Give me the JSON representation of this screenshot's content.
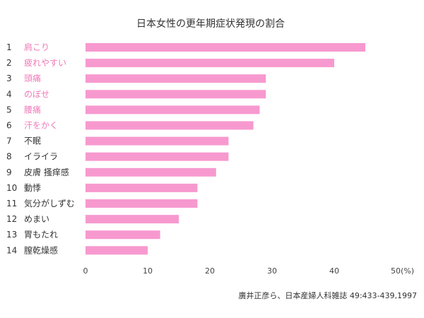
{
  "chart_data": {
    "type": "bar",
    "orientation": "horizontal",
    "title": "日本女性の更年期症状発現の割合",
    "ranks": [
      "1",
      "2",
      "3",
      "4",
      "5",
      "6",
      "7",
      "8",
      "9",
      "10",
      "11",
      "12",
      "13",
      "14"
    ],
    "categories": [
      "肩こり",
      "疲れやすい",
      "頭痛",
      "のぼせ",
      "腰痛",
      "汗をかく",
      "不眠",
      "イライラ",
      "皮膚 搔痒感",
      "動悸",
      "気分がしずむ",
      "めまい",
      "胃もたれ",
      "膣乾燥感"
    ],
    "values": [
      45,
      40,
      29,
      29,
      28,
      27,
      23,
      23,
      21,
      18,
      18,
      15,
      12,
      10
    ],
    "label_colors": [
      "#f07ab8",
      "#f07ab8",
      "#f07ab8",
      "#f07ab8",
      "#f07ab8",
      "#f07ab8",
      "#333333",
      "#333333",
      "#333333",
      "#333333",
      "#333333",
      "#333333",
      "#333333",
      "#333333"
    ],
    "bar_color": "#f799cf",
    "xlim": [
      0,
      50
    ],
    "xticks": [
      "0",
      "10",
      "20",
      "30",
      "40",
      "50(%)"
    ],
    "grid": false,
    "source": "廣井正彦ら、日本産婦人科雑誌 49:433-439,1997"
  }
}
